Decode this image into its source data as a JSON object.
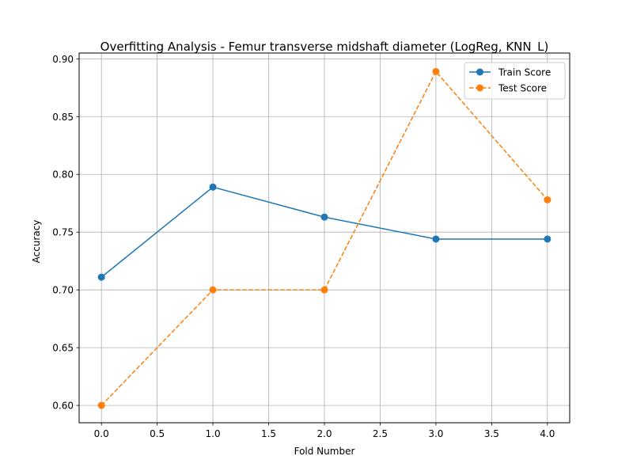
{
  "chart_data": {
    "type": "line",
    "title": "Overfitting Analysis - Femur transverse midshaft diameter (LogReg, KNN_L)",
    "xlabel": "Fold Number",
    "ylabel": "Accuracy",
    "x": [
      0,
      1,
      2,
      3,
      4
    ],
    "xlim": [
      -0.2,
      4.2
    ],
    "ylim": [
      0.585,
      0.905
    ],
    "xticks": [
      0.0,
      0.5,
      1.0,
      1.5,
      2.0,
      2.5,
      3.0,
      3.5,
      4.0
    ],
    "xtick_labels": [
      "0.0",
      "0.5",
      "1.0",
      "1.5",
      "2.0",
      "2.5",
      "3.0",
      "3.5",
      "4.0"
    ],
    "yticks": [
      0.6,
      0.65,
      0.7,
      0.75,
      0.8,
      0.85,
      0.9
    ],
    "ytick_labels": [
      "0.60",
      "0.65",
      "0.70",
      "0.75",
      "0.80",
      "0.85",
      "0.90"
    ],
    "grid": true,
    "legend_position": "top-right",
    "series": [
      {
        "name": "Train Score",
        "values": [
          0.711,
          0.789,
          0.763,
          0.744,
          0.744
        ],
        "color": "#1f77b4",
        "linestyle": "solid",
        "marker": "circle"
      },
      {
        "name": "Test Score",
        "values": [
          0.6,
          0.7,
          0.7,
          0.889,
          0.778
        ],
        "color": "#ff7f0e",
        "linestyle": "dashed",
        "marker": "circle"
      }
    ]
  }
}
